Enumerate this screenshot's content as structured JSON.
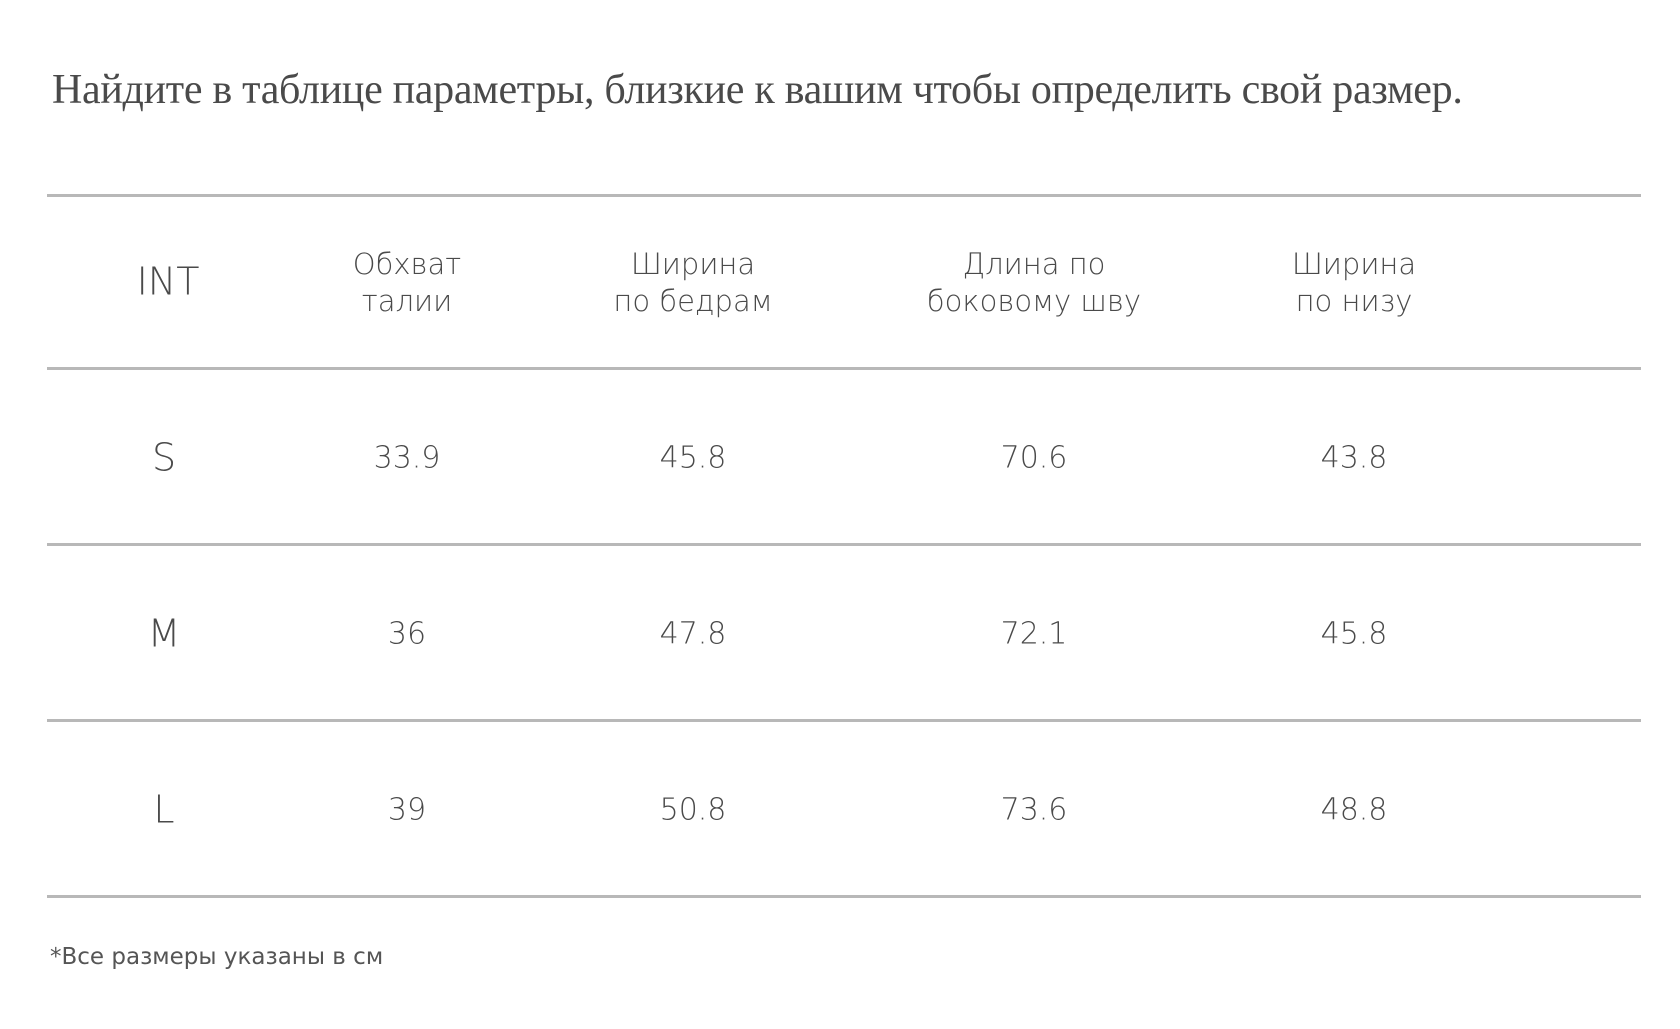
{
  "title": "Найдите в таблице параметры, близкие к вашим чтобы определить свой размер.",
  "table": {
    "headers": [
      {
        "line1": "INT",
        "line2": ""
      },
      {
        "line1": "Обхват",
        "line2": "талии"
      },
      {
        "line1": "Ширина",
        "line2": "по бедрам"
      },
      {
        "line1": "Длина по",
        "line2": "боковому шву"
      },
      {
        "line1": "Ширина",
        "line2": "по низу"
      }
    ],
    "rows": [
      [
        "S",
        "33.9",
        "45.8",
        "70.6",
        "43.8"
      ],
      [
        "M",
        "36",
        "47.8",
        "72.1",
        "45.8"
      ],
      [
        "L",
        "39",
        "50.8",
        "73.6",
        "48.8"
      ]
    ]
  },
  "footnote": "*Все размеры указаны в см"
}
